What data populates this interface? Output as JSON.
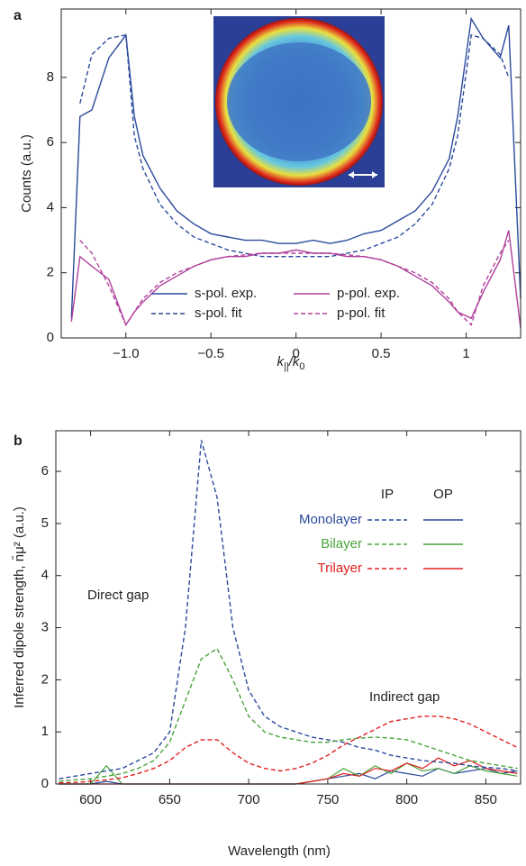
{
  "chart_data": [
    {
      "type": "line",
      "panel_label": "a",
      "y_label": "Counts (a.u.)",
      "x_label": {
        "parts": [
          "k",
          "||",
          "/k",
          "0"
        ]
      },
      "x": [
        -1.32,
        -1.27,
        -1.2,
        -1.1,
        -1.0,
        -0.95,
        -0.9,
        -0.8,
        -0.7,
        -0.6,
        -0.5,
        -0.4,
        -0.3,
        -0.2,
        -0.1,
        0,
        0.1,
        0.2,
        0.3,
        0.4,
        0.5,
        0.6,
        0.7,
        0.8,
        0.9,
        0.95,
        1.03,
        1.1,
        1.2,
        1.25,
        1.32
      ],
      "xlim": [
        -1.38,
        1.32
      ],
      "xticks": [
        {
          "value": -1,
          "label": "−1.0"
        },
        {
          "value": -0.5,
          "label": "−0.5"
        },
        0,
        0.5,
        1
      ],
      "ylim": [
        0,
        10.1
      ],
      "yticks": [
        0,
        2,
        4,
        6,
        8
      ],
      "series": [
        {
          "name": "s-pol. exp.",
          "color": "#2b4a9c",
          "line_style": "solid",
          "values": [
            0.6,
            6.8,
            7.0,
            8.6,
            9.3,
            6.8,
            5.6,
            4.6,
            3.9,
            3.5,
            3.2,
            3.1,
            3.0,
            3.0,
            2.9,
            2.9,
            3.0,
            2.9,
            3.0,
            3.2,
            3.3,
            3.6,
            3.9,
            4.5,
            5.5,
            6.8,
            9.8,
            9.2,
            8.6,
            9.6,
            1.2
          ]
        },
        {
          "name": "s-pol. fit",
          "color": "#2b4a9c",
          "line_style": "dashed",
          "values": [
            null,
            7.2,
            8.7,
            9.2,
            9.3,
            6.2,
            5.2,
            4.1,
            3.5,
            3.1,
            2.9,
            2.7,
            2.6,
            2.5,
            2.5,
            2.5,
            2.5,
            2.5,
            2.6,
            2.7,
            2.9,
            3.1,
            3.5,
            4.1,
            5.2,
            6.2,
            9.3,
            9.2,
            8.7,
            8.0,
            null
          ]
        },
        {
          "name": "p-pol. exp.",
          "color": "#b0409c",
          "line_style": "solid",
          "values": [
            0.5,
            2.5,
            2.2,
            1.8,
            0.4,
            0.8,
            1.1,
            1.6,
            1.9,
            2.2,
            2.4,
            2.5,
            2.5,
            2.6,
            2.6,
            2.7,
            2.6,
            2.6,
            2.5,
            2.5,
            2.4,
            2.2,
            1.9,
            1.6,
            1.1,
            0.8,
            0.6,
            1.4,
            2.4,
            3.3,
            0.3
          ]
        },
        {
          "name": "p-pol. fit",
          "color": "#b0409c",
          "line_style": "dashed",
          "values": [
            null,
            3.0,
            2.6,
            1.6,
            0.4,
            0.8,
            1.2,
            1.7,
            2.0,
            2.2,
            2.4,
            2.5,
            2.55,
            2.6,
            2.6,
            2.6,
            2.6,
            2.6,
            2.55,
            2.5,
            2.4,
            2.2,
            2.0,
            1.7,
            1.2,
            0.8,
            0.4,
            1.6,
            2.6,
            3.0,
            null
          ]
        }
      ]
    },
    {
      "type": "line",
      "panel_label": "b",
      "y_label": "Inferred dipole strength, n̄μ² (a.u.)",
      "x_label": {
        "parts": [
          "Wavelength (nm)"
        ]
      },
      "x": [
        580,
        590,
        600,
        610,
        620,
        630,
        640,
        650,
        660,
        670,
        680,
        690,
        700,
        710,
        720,
        730,
        740,
        750,
        760,
        770,
        780,
        790,
        800,
        810,
        820,
        830,
        840,
        850,
        860,
        870
      ],
      "xlim": [
        578,
        872
      ],
      "xticks": [
        600,
        650,
        700,
        750,
        800,
        850
      ],
      "ylim": [
        0,
        6.78
      ],
      "yticks": [
        0,
        1,
        2,
        3,
        4,
        5,
        6
      ],
      "legend_headers": [
        "IP",
        "OP"
      ],
      "annotations": [
        "Direct gap",
        "Indirect gap"
      ],
      "series": [
        {
          "name": "Monolayer",
          "color": "#2b4a9c",
          "ip": [
            0.1,
            0.15,
            0.2,
            0.25,
            0.3,
            0.45,
            0.6,
            1.0,
            3.0,
            6.6,
            5.5,
            3.0,
            1.8,
            1.3,
            1.1,
            1.0,
            0.9,
            0.85,
            0.8,
            0.7,
            0.65,
            0.55,
            0.5,
            0.45,
            0.42,
            0.4,
            0.35,
            0.32,
            0.3,
            0.25
          ],
          "op": [
            0,
            0,
            0,
            0.05,
            0,
            0,
            0,
            0,
            0,
            0,
            0,
            0,
            0,
            0,
            0,
            0,
            0.05,
            0.1,
            0.15,
            0.2,
            0.1,
            0.25,
            0.2,
            0.15,
            0.3,
            0.2,
            0.25,
            0.3,
            0.2,
            0.25
          ]
        },
        {
          "name": "Bilayer",
          "color": "#4aa33a",
          "ip": [
            0.05,
            0.08,
            0.1,
            0.15,
            0.2,
            0.3,
            0.45,
            0.8,
            1.6,
            2.4,
            2.6,
            2.0,
            1.3,
            1.0,
            0.9,
            0.85,
            0.8,
            0.8,
            0.85,
            0.88,
            0.9,
            0.88,
            0.85,
            0.75,
            0.65,
            0.55,
            0.45,
            0.4,
            0.35,
            0.3
          ],
          "op": [
            0,
            0,
            0,
            0.35,
            0,
            0,
            0,
            0,
            0,
            0,
            0,
            0,
            0,
            0,
            0,
            0,
            0.05,
            0.1,
            0.3,
            0.15,
            0.35,
            0.2,
            0.4,
            0.25,
            0.3,
            0.2,
            0.35,
            0.25,
            0.2,
            0.15
          ]
        },
        {
          "name": "Trilayer",
          "color": "#e02020",
          "ip": [
            0.02,
            0.03,
            0.05,
            0.08,
            0.12,
            0.2,
            0.3,
            0.45,
            0.7,
            0.85,
            0.85,
            0.6,
            0.4,
            0.3,
            0.25,
            0.3,
            0.4,
            0.55,
            0.75,
            0.9,
            1.05,
            1.2,
            1.25,
            1.3,
            1.3,
            1.25,
            1.15,
            1.0,
            0.85,
            0.7
          ],
          "op": [
            0,
            0,
            0,
            0,
            0,
            0,
            0,
            0,
            0,
            0,
            0,
            0,
            0,
            0,
            0,
            0,
            0.05,
            0.1,
            0.2,
            0.15,
            0.3,
            0.25,
            0.4,
            0.3,
            0.5,
            0.35,
            0.45,
            0.3,
            0.25,
            0.2
          ]
        }
      ]
    }
  ]
}
